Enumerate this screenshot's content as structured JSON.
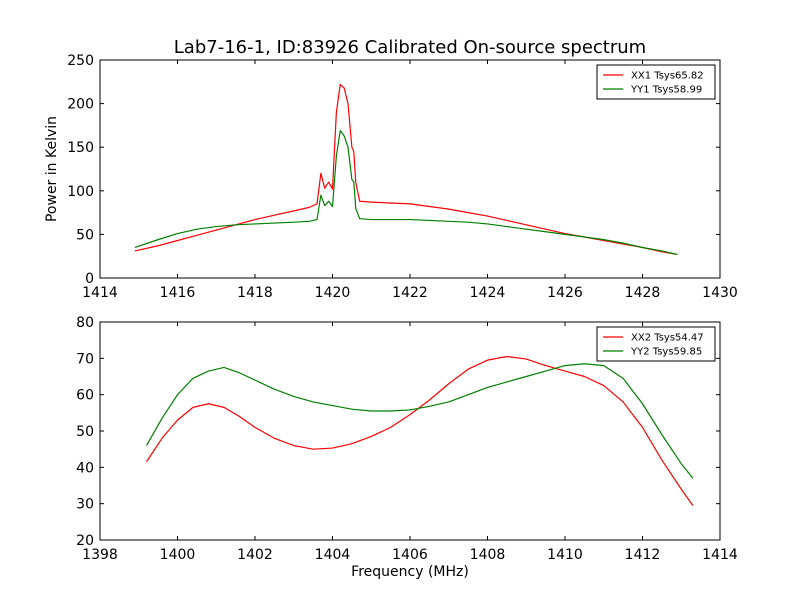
{
  "chart_data": [
    {
      "type": "line",
      "title": "Lab7-16-1, ID:83926 Calibrated On-source spectrum",
      "ylabel": "Power in Kelvin",
      "xlabel": "",
      "xlim": [
        1414,
        1430
      ],
      "ylim": [
        0,
        250
      ],
      "xticks": [
        1414,
        1416,
        1418,
        1420,
        1422,
        1424,
        1426,
        1428,
        1430
      ],
      "yticks": [
        0,
        50,
        100,
        150,
        200,
        250
      ],
      "legend_position": "top-right",
      "series": [
        {
          "name": "XX1 Tsys65.82",
          "color": "#ff0000",
          "x": [
            1414.9,
            1415.5,
            1416.0,
            1416.5,
            1417.0,
            1417.5,
            1418.0,
            1418.5,
            1419.0,
            1419.4,
            1419.6,
            1419.7,
            1419.8,
            1419.9,
            1420.0,
            1420.1,
            1420.2,
            1420.3,
            1420.4,
            1420.5,
            1420.55,
            1420.6,
            1420.7,
            1421.0,
            1421.5,
            1422.0,
            1422.5,
            1423.0,
            1423.5,
            1424.0,
            1424.5,
            1425.0,
            1425.5,
            1426.0,
            1426.5,
            1427.0,
            1427.5,
            1428.0,
            1428.5,
            1428.9
          ],
          "y": [
            31,
            37,
            43,
            49,
            55,
            61,
            67,
            72,
            77,
            81,
            85,
            120,
            103,
            110,
            102,
            190,
            222,
            218,
            200,
            150,
            145,
            110,
            88,
            87,
            86,
            85,
            82,
            79,
            75,
            71,
            66,
            61,
            56,
            51,
            47,
            43,
            39,
            35,
            30,
            27
          ]
        },
        {
          "name": "YY1 Tsys58.99",
          "color": "#008000",
          "x": [
            1414.9,
            1415.5,
            1416.0,
            1416.5,
            1417.0,
            1417.5,
            1418.0,
            1418.5,
            1419.0,
            1419.4,
            1419.6,
            1419.7,
            1419.8,
            1419.9,
            1420.0,
            1420.1,
            1420.2,
            1420.3,
            1420.4,
            1420.5,
            1420.55,
            1420.6,
            1420.7,
            1421.0,
            1421.5,
            1422.0,
            1422.5,
            1423.0,
            1423.5,
            1424.0,
            1424.5,
            1425.0,
            1425.5,
            1426.0,
            1426.5,
            1427.0,
            1427.5,
            1428.0,
            1428.5,
            1428.9
          ],
          "y": [
            35,
            44,
            51,
            56,
            59,
            61,
            62,
            63,
            64,
            65,
            67,
            95,
            83,
            88,
            82,
            140,
            169,
            163,
            150,
            113,
            110,
            80,
            68,
            67,
            67,
            67,
            66,
            65,
            64,
            62,
            59,
            56,
            53,
            50,
            47,
            44,
            40,
            35,
            31,
            27
          ]
        }
      ]
    },
    {
      "type": "line",
      "title": "",
      "xlabel": "Frequency (MHz)",
      "ylabel": "",
      "xlim": [
        1398,
        1414
      ],
      "ylim": [
        20,
        80
      ],
      "xticks": [
        1398,
        1400,
        1402,
        1404,
        1406,
        1408,
        1410,
        1412,
        1414
      ],
      "yticks": [
        20,
        30,
        40,
        50,
        60,
        70,
        80
      ],
      "legend_position": "top-right",
      "series": [
        {
          "name": "XX2 Tsys54.47",
          "color": "#ff0000",
          "x": [
            1399.2,
            1399.6,
            1400.0,
            1400.4,
            1400.8,
            1401.2,
            1401.6,
            1402.0,
            1402.5,
            1403.0,
            1403.5,
            1404.0,
            1404.5,
            1405.0,
            1405.5,
            1406.0,
            1406.5,
            1407.0,
            1407.5,
            1408.0,
            1408.5,
            1409.0,
            1409.5,
            1410.0,
            1410.5,
            1411.0,
            1411.5,
            1412.0,
            1412.5,
            1413.0,
            1413.3
          ],
          "y": [
            41.5,
            48,
            53,
            56.5,
            57.5,
            56.5,
            54,
            51,
            48,
            46,
            45,
            45.3,
            46.5,
            48.5,
            51,
            54.5,
            58.5,
            63,
            67,
            69.5,
            70.5,
            69.8,
            68,
            66.5,
            65,
            62.5,
            58,
            51,
            42,
            34,
            29.5
          ]
        },
        {
          "name": "YY2 Tsys59.85",
          "color": "#008000",
          "x": [
            1399.2,
            1399.6,
            1400.0,
            1400.4,
            1400.8,
            1401.2,
            1401.6,
            1402.0,
            1402.5,
            1403.0,
            1403.5,
            1404.0,
            1404.5,
            1405.0,
            1405.5,
            1406.0,
            1406.5,
            1407.0,
            1407.5,
            1408.0,
            1408.5,
            1409.0,
            1409.5,
            1410.0,
            1410.5,
            1411.0,
            1411.5,
            1412.0,
            1412.5,
            1413.0,
            1413.3
          ],
          "y": [
            46,
            53.5,
            60,
            64.5,
            66.5,
            67.5,
            66,
            64,
            61.5,
            59.5,
            58,
            57,
            56,
            55.5,
            55.5,
            55.8,
            56.8,
            58,
            60,
            62,
            63.5,
            65,
            66.5,
            68,
            68.5,
            68,
            64.5,
            57.5,
            49,
            41,
            37
          ]
        }
      ]
    }
  ]
}
